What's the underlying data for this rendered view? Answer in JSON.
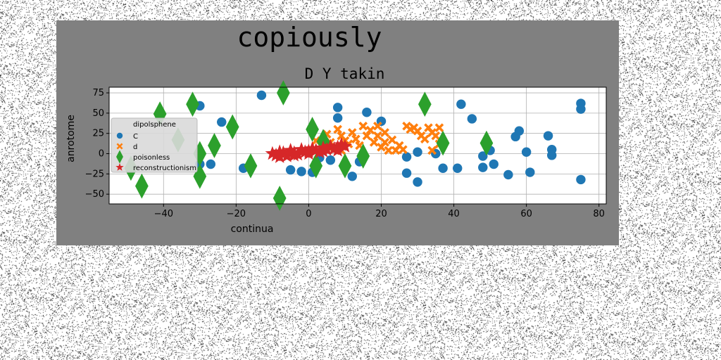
{
  "title": "copiously",
  "chart_data": {
    "type": "scatter",
    "title": "D Y takin",
    "xlabel": "continua",
    "ylabel": "anrotome",
    "xlim": [
      -55,
      82
    ],
    "ylim": [
      -62,
      82
    ],
    "xticks": [
      -40,
      -20,
      0,
      20,
      40,
      60,
      80
    ],
    "yticks": [
      -50,
      -25,
      0,
      25,
      50,
      75
    ],
    "grid": true,
    "legend": {
      "title": "dipolsphene",
      "position": "left"
    },
    "series": [
      {
        "name": "C",
        "marker": "circle",
        "color": "#1f77b4",
        "points": [
          [
            -13,
            72
          ],
          [
            -30,
            59
          ],
          [
            -24,
            39
          ],
          [
            -27,
            -13
          ],
          [
            -18,
            -18
          ],
          [
            -30,
            -13
          ],
          [
            -2,
            -22
          ],
          [
            1,
            -23
          ],
          [
            6,
            -8
          ],
          [
            16,
            51
          ],
          [
            20,
            40
          ],
          [
            8,
            57
          ],
          [
            8,
            44
          ],
          [
            14,
            -10
          ],
          [
            12,
            -28
          ],
          [
            27,
            -4
          ],
          [
            27,
            -24
          ],
          [
            30,
            -35
          ],
          [
            30,
            2
          ],
          [
            35,
            0
          ],
          [
            37,
            -18
          ],
          [
            42,
            61
          ],
          [
            45,
            43
          ],
          [
            41,
            -18
          ],
          [
            48,
            -3
          ],
          [
            48,
            -17
          ],
          [
            50,
            4
          ],
          [
            51,
            -13
          ],
          [
            55,
            -26
          ],
          [
            57,
            21
          ],
          [
            58,
            28
          ],
          [
            60,
            2
          ],
          [
            61,
            -23
          ],
          [
            66,
            22
          ],
          [
            67,
            5
          ],
          [
            67,
            -2
          ],
          [
            75,
            62
          ],
          [
            75,
            55
          ],
          [
            75,
            -32
          ],
          [
            -5,
            -20
          ],
          [
            3,
            -5
          ]
        ]
      },
      {
        "name": "d",
        "marker": "x",
        "color": "#ff7f0e",
        "points": [
          [
            2,
            16
          ],
          [
            5,
            24
          ],
          [
            6,
            14
          ],
          [
            8,
            30
          ],
          [
            9,
            22
          ],
          [
            11,
            12
          ],
          [
            12,
            26
          ],
          [
            13,
            18
          ],
          [
            14,
            10
          ],
          [
            15,
            34
          ],
          [
            16,
            22
          ],
          [
            17,
            29
          ],
          [
            18,
            14
          ],
          [
            19,
            34
          ],
          [
            19,
            22
          ],
          [
            20,
            8
          ],
          [
            21,
            26
          ],
          [
            22,
            4
          ],
          [
            23,
            17
          ],
          [
            24,
            4
          ],
          [
            26,
            5
          ],
          [
            27,
            34
          ],
          [
            28,
            30
          ],
          [
            29,
            32
          ],
          [
            30,
            28
          ],
          [
            31,
            22
          ],
          [
            32,
            18
          ],
          [
            33,
            32
          ],
          [
            34,
            26
          ],
          [
            35,
            22
          ],
          [
            36,
            32
          ],
          [
            36,
            12
          ],
          [
            34,
            4
          ],
          [
            7,
            8
          ],
          [
            9,
            4
          ],
          [
            25,
            10
          ],
          [
            21,
            14
          ],
          [
            10,
            16
          ]
        ]
      },
      {
        "name": "poisonless",
        "marker": "diamond",
        "color": "#2ca02c",
        "points": [
          [
            -7,
            75
          ],
          [
            -41,
            49
          ],
          [
            -32,
            61
          ],
          [
            -21,
            33
          ],
          [
            -26,
            10
          ],
          [
            -30,
            0
          ],
          [
            -30,
            -28
          ],
          [
            -16,
            -15
          ],
          [
            -46,
            -40
          ],
          [
            -49,
            -18
          ],
          [
            -36,
            17
          ],
          [
            -8,
            -55
          ],
          [
            1,
            30
          ],
          [
            2,
            -15
          ],
          [
            4,
            15
          ],
          [
            10,
            -15
          ],
          [
            15,
            -3
          ],
          [
            32,
            61
          ],
          [
            37,
            13
          ],
          [
            49,
            13
          ]
        ]
      },
      {
        "name": "reconstructionism",
        "marker": "star",
        "color": "#d62728",
        "points": [
          [
            -10,
            0
          ],
          [
            -9,
            -2
          ],
          [
            -8,
            2
          ],
          [
            -7,
            1
          ],
          [
            -6,
            -3
          ],
          [
            -5,
            4
          ],
          [
            -4,
            1
          ],
          [
            -3,
            -1
          ],
          [
            -2,
            5
          ],
          [
            -1,
            2
          ],
          [
            0,
            3
          ],
          [
            1,
            6
          ],
          [
            2,
            4
          ],
          [
            3,
            2
          ],
          [
            4,
            7
          ],
          [
            5,
            5
          ],
          [
            6,
            9
          ],
          [
            7,
            6
          ],
          [
            8,
            8
          ],
          [
            9,
            11
          ],
          [
            10,
            9
          ],
          [
            -8,
            -4
          ],
          [
            -4,
            -2
          ],
          [
            0,
            0
          ],
          [
            4,
            3
          ],
          [
            8,
            4
          ]
        ]
      }
    ]
  }
}
